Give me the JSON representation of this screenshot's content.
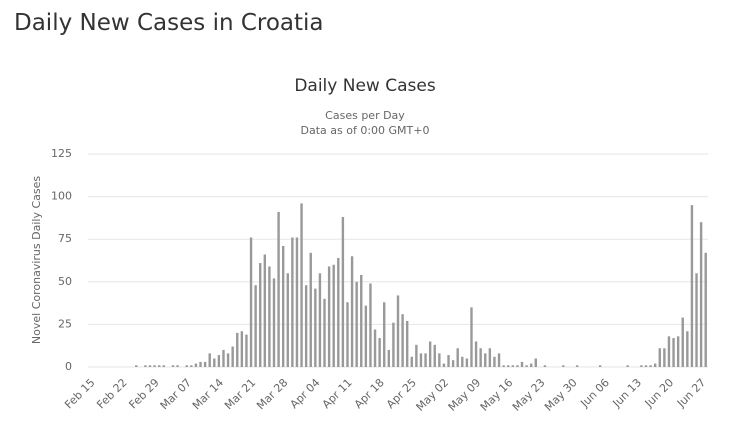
{
  "page_title": "Daily New Cases in Croatia",
  "chart_data": {
    "type": "bar",
    "title": "Daily New Cases",
    "subtitle": [
      "Cases per Day",
      "Data as of 0:00 GMT+0"
    ],
    "y_label": "Novel Coronavirus Daily Cases",
    "color": "#999999",
    "grid": true,
    "ylim": [
      0,
      125
    ],
    "yticks": [
      0,
      25,
      50,
      75,
      100,
      125
    ],
    "categories": [
      "Feb 15",
      null,
      null,
      null,
      null,
      null,
      null,
      "Feb 22",
      null,
      null,
      null,
      null,
      null,
      null,
      "Feb 29",
      null,
      null,
      null,
      null,
      null,
      null,
      "Mar 07",
      null,
      null,
      null,
      null,
      null,
      null,
      "Mar 14",
      null,
      null,
      null,
      null,
      null,
      null,
      "Mar 21",
      null,
      null,
      null,
      null,
      null,
      null,
      "Mar 28",
      null,
      null,
      null,
      null,
      null,
      null,
      "Apr 04",
      null,
      null,
      null,
      null,
      null,
      null,
      "Apr 11",
      null,
      null,
      null,
      null,
      null,
      null,
      "Apr 18",
      null,
      null,
      null,
      null,
      null,
      null,
      "Apr 25",
      null,
      null,
      null,
      null,
      null,
      null,
      "May 02",
      null,
      null,
      null,
      null,
      null,
      null,
      "May 09",
      null,
      null,
      null,
      null,
      null,
      null,
      "May 16",
      null,
      null,
      null,
      null,
      null,
      null,
      "May 23",
      null,
      null,
      null,
      null,
      null,
      null,
      "May 30",
      null,
      null,
      null,
      null,
      null,
      null,
      "Jun 06",
      null,
      null,
      null,
      null,
      null,
      null,
      "Jun 13",
      null,
      null,
      null,
      null,
      null,
      null,
      "Jun 20",
      null,
      null,
      null,
      null,
      null,
      null,
      "Jun 27",
      null
    ],
    "values": [
      0,
      0,
      0,
      0,
      0,
      0,
      0,
      0,
      0,
      0,
      1,
      0,
      1,
      1,
      1,
      1,
      1,
      0,
      1,
      1,
      0,
      1,
      1,
      2,
      3,
      3,
      8,
      5,
      7,
      10,
      8,
      12,
      20,
      21,
      19,
      76,
      48,
      61,
      66,
      59,
      52,
      91,
      71,
      55,
      76,
      76,
      96,
      48,
      67,
      46,
      55,
      40,
      59,
      60,
      64,
      88,
      38,
      65,
      50,
      54,
      36,
      49,
      22,
      17,
      38,
      10,
      26,
      42,
      31,
      27,
      6,
      13,
      8,
      8,
      15,
      13,
      8,
      2,
      7,
      4,
      11,
      6,
      5,
      35,
      15,
      11,
      8,
      11,
      6,
      8,
      1,
      1,
      1,
      1,
      3,
      1,
      2,
      5,
      0,
      1,
      0,
      0,
      0,
      1,
      0,
      0,
      1,
      0,
      0,
      0,
      0,
      1,
      0,
      0,
      0,
      0,
      0,
      1,
      0,
      0,
      1,
      1,
      1,
      2,
      11,
      11,
      18,
      17,
      18,
      29,
      21,
      95,
      55,
      85,
      67
    ]
  }
}
